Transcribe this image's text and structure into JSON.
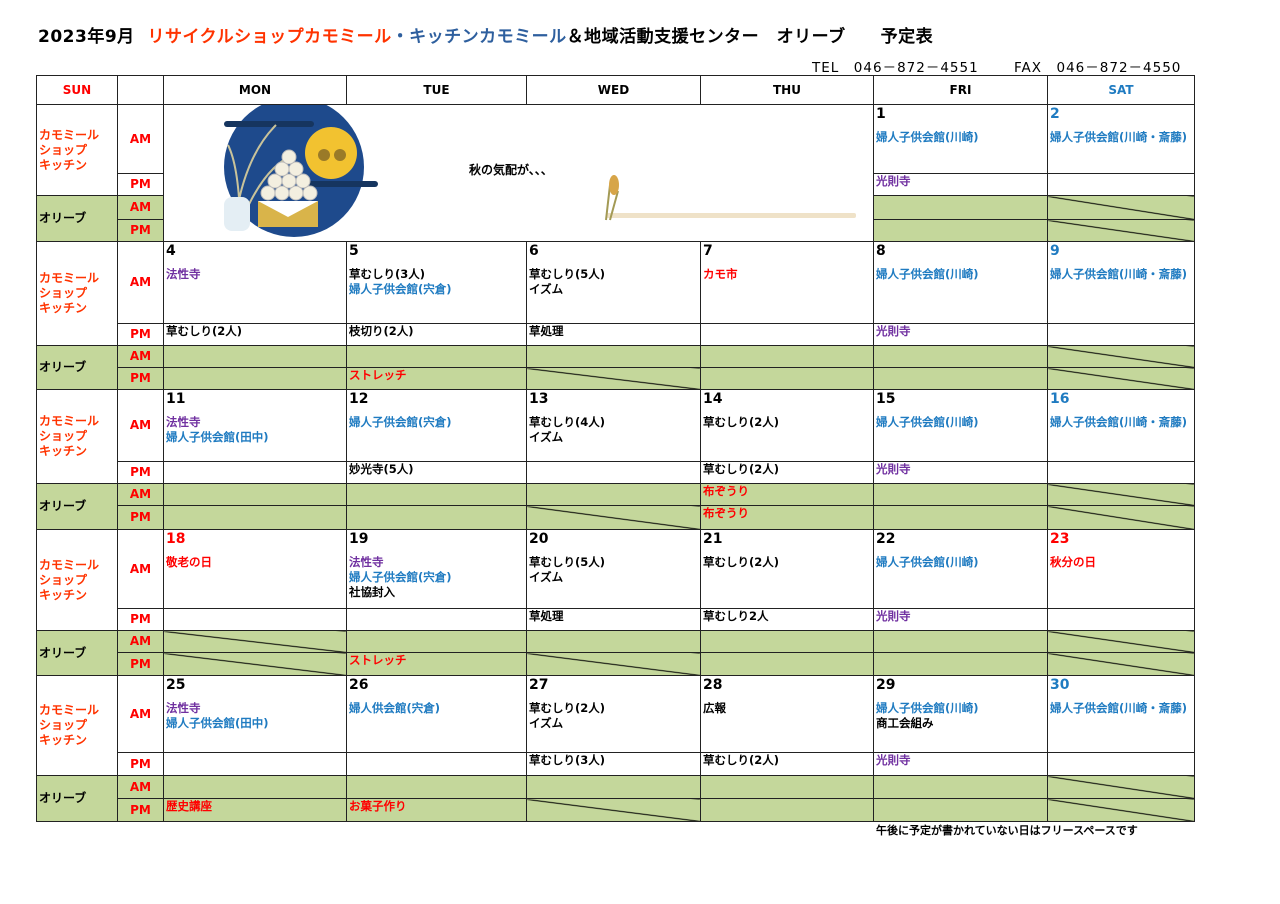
{
  "header": {
    "title_date": "2023年9月",
    "title_shop": "リサイクルショップカモミール",
    "title_kitchen": "・キッチンカモミール",
    "title_rest": "＆地域活動支援センター　オリーブ　　予定表",
    "tel": "TEL　046－872－4551",
    "fax": "FAX　046－872－4550"
  },
  "colors": {
    "shop": "#ff3300",
    "kitchen": "#2e5f9e",
    "blue": "#1f7bc1",
    "purple": "#7030a0",
    "red": "#ff0000",
    "olive_green": "#c4d79b"
  },
  "columns": [
    "SUN",
    "",
    "MON",
    "TUE",
    "WED",
    "THU",
    "FRI",
    "SAT"
  ],
  "labels": {
    "kitchen": "カモミール\nショップ\nキッチン",
    "olive": "オリーブ",
    "am": "AM",
    "pm": "PM"
  },
  "art_text": "秋の気配が、、、",
  "weeks": [
    {
      "days": [
        null,
        null,
        null,
        null,
        {
          "date": "1",
          "am": [
            {
              "t": "婦人子供会館(川崎)",
              "c": "blue"
            }
          ],
          "pm": [
            {
              "t": "光則寺",
              "c": "purple"
            }
          ],
          "oam": [],
          "opm": []
        },
        {
          "date": "2",
          "dc": "blue",
          "am": [
            {
              "t": "婦人子供会館(川崎・斎藤)",
              "c": "blue"
            }
          ],
          "pm": [],
          "oam": [],
          "opm": [],
          "slash_am": true,
          "slash_pm": true
        }
      ]
    },
    {
      "arrow": true,
      "days": [
        {
          "date": "4",
          "am": [
            {
              "t": "法性寺",
              "c": "purple"
            }
          ],
          "pm": [
            {
              "t": "草むしり(2人)",
              "c": "black"
            }
          ],
          "oam": [],
          "opm": []
        },
        {
          "date": "5",
          "am": [
            {
              "t": "草むしり(3人)",
              "c": "black"
            },
            {
              "t": "婦人子供会館(宍倉)",
              "c": "blue"
            }
          ],
          "pm": [
            {
              "t": "枝切り(2人)",
              "c": "black"
            }
          ],
          "oam": [],
          "opm": [
            {
              "t": "ストレッチ",
              "c": "red"
            }
          ]
        },
        {
          "date": "6",
          "am": [
            {
              "t": "草むしり(5人)",
              "c": "black"
            },
            {
              "t": "イズム",
              "c": "black"
            }
          ],
          "pm": [
            {
              "t": "草処理",
              "c": "black"
            }
          ],
          "oam": [],
          "opm": [],
          "slash_pm": true
        },
        {
          "date": "7",
          "am": [
            {
              "t": "カモ市",
              "c": "red"
            }
          ],
          "pm": [],
          "oam": [],
          "opm": []
        },
        {
          "date": "8",
          "am": [
            {
              "t": "婦人子供会館(川崎)",
              "c": "blue"
            }
          ],
          "pm": [
            {
              "t": "光則寺",
              "c": "purple"
            }
          ],
          "oam": [],
          "opm": []
        },
        {
          "date": "9",
          "dc": "blue",
          "am": [
            {
              "t": "婦人子供会館(川崎・斎藤)",
              "c": "blue"
            }
          ],
          "pm": [],
          "oam": [],
          "opm": [],
          "slash_am": true,
          "slash_pm": true
        }
      ]
    },
    {
      "arrow": true,
      "days": [
        {
          "date": "11",
          "am": [
            {
              "t": "法性寺",
              "c": "purple"
            },
            {
              "t": "婦人子供会館(田中)",
              "c": "blue"
            }
          ],
          "pm": [],
          "oam": [],
          "opm": []
        },
        {
          "date": "12",
          "am": [
            {
              "t": "婦人子供会館(宍倉)",
              "c": "blue"
            }
          ],
          "pm": [
            {
              "t": "妙光寺(5人)",
              "c": "black"
            }
          ],
          "oam": [],
          "opm": []
        },
        {
          "date": "13",
          "am": [
            {
              "t": "草むしり(4人)",
              "c": "black"
            },
            {
              "t": "イズム",
              "c": "black"
            }
          ],
          "pm": [],
          "oam": [],
          "opm": [],
          "slash_pm": true
        },
        {
          "date": "14",
          "am": [
            {
              "t": "草むしり(2人)",
              "c": "black"
            }
          ],
          "pm": [
            {
              "t": "草むしり(2人)",
              "c": "black"
            }
          ],
          "oam": [
            {
              "t": "布ぞうり",
              "c": "red"
            }
          ],
          "opm": [
            {
              "t": "布ぞうり",
              "c": "red"
            }
          ]
        },
        {
          "date": "15",
          "am": [
            {
              "t": "婦人子供会館(川崎)",
              "c": "blue"
            }
          ],
          "pm": [
            {
              "t": "光則寺",
              "c": "purple"
            }
          ],
          "oam": [],
          "opm": []
        },
        {
          "date": "16",
          "dc": "blue",
          "am": [
            {
              "t": "婦人子供会館(川崎・斎藤)",
              "c": "blue"
            }
          ],
          "pm": [],
          "oam": [],
          "opm": [],
          "slash_am": true,
          "slash_pm": true
        }
      ]
    },
    {
      "arrow": true,
      "days": [
        {
          "date": "18",
          "dc": "red",
          "am": [
            {
              "t": "敬老の日",
              "c": "red"
            }
          ],
          "pm": [],
          "oam": [],
          "opm": [],
          "slash_am": true,
          "slash_pm": true
        },
        {
          "date": "19",
          "am": [
            {
              "t": "法性寺",
              "c": "purple"
            },
            {
              "t": "婦人子供会館(宍倉)",
              "c": "blue"
            },
            {
              "t": "社協封入",
              "c": "black"
            }
          ],
          "pm": [],
          "oam": [],
          "opm": [
            {
              "t": "ストレッチ",
              "c": "red"
            }
          ]
        },
        {
          "date": "20",
          "am": [
            {
              "t": "草むしり(5人)",
              "c": "black"
            },
            {
              "t": "イズム",
              "c": "black"
            }
          ],
          "pm": [
            {
              "t": "草処理",
              "c": "black"
            }
          ],
          "oam": [],
          "opm": [],
          "slash_pm": true
        },
        {
          "date": "21",
          "am": [
            {
              "t": "草むしり(2人)",
              "c": "black"
            }
          ],
          "pm": [
            {
              "t": "草むしり2人",
              "c": "black"
            }
          ],
          "oam": [],
          "opm": []
        },
        {
          "date": "22",
          "am": [
            {
              "t": "婦人子供会館(川崎)",
              "c": "blue"
            }
          ],
          "pm": [
            {
              "t": "光則寺",
              "c": "purple"
            }
          ],
          "oam": [],
          "opm": []
        },
        {
          "date": "23",
          "dc": "red",
          "am": [
            {
              "t": "秋分の日",
              "c": "red"
            }
          ],
          "pm": [],
          "oam": [],
          "opm": [],
          "slash_am": true,
          "slash_pm": true
        }
      ]
    },
    {
      "arrow": true,
      "days": [
        {
          "date": "25",
          "am": [
            {
              "t": "法性寺",
              "c": "purple"
            },
            {
              "t": "婦人子供会館(田中)",
              "c": "blue"
            }
          ],
          "pm": [],
          "oam": [],
          "opm": [
            {
              "t": "歴史講座",
              "c": "red"
            }
          ]
        },
        {
          "date": "26",
          "am": [
            {
              "t": "婦人供会館(宍倉)",
              "c": "blue"
            }
          ],
          "pm": [],
          "oam": [],
          "opm": [
            {
              "t": "お菓子作り",
              "c": "red"
            }
          ]
        },
        {
          "date": "27",
          "am": [
            {
              "t": "草むしり(2人)",
              "c": "black"
            },
            {
              "t": "イズム",
              "c": "black"
            }
          ],
          "pm": [
            {
              "t": "草むしり(3人)",
              "c": "black"
            }
          ],
          "oam": [],
          "opm": [],
          "slash_pm": true
        },
        {
          "date": "28",
          "am": [
            {
              "t": "広報",
              "c": "black"
            }
          ],
          "pm": [
            {
              "t": "草むしり(2人)",
              "c": "black"
            }
          ],
          "oam": [],
          "opm": []
        },
        {
          "date": "29",
          "am": [
            {
              "t": "婦人子供会館(川崎)",
              "c": "blue"
            },
            {
              "t": "商工会組み",
              "c": "black"
            }
          ],
          "pm": [
            {
              "t": "光則寺",
              "c": "purple"
            }
          ],
          "oam": [],
          "opm": []
        },
        {
          "date": "30",
          "dc": "blue",
          "am": [
            {
              "t": "婦人子供会館(川崎・斎藤)",
              "c": "blue"
            }
          ],
          "pm": [],
          "oam": [],
          "opm": [],
          "slash_am": true,
          "slash_pm": true
        }
      ]
    }
  ],
  "footer_note": "午後に予定が書かれていない日はフリースペースです"
}
